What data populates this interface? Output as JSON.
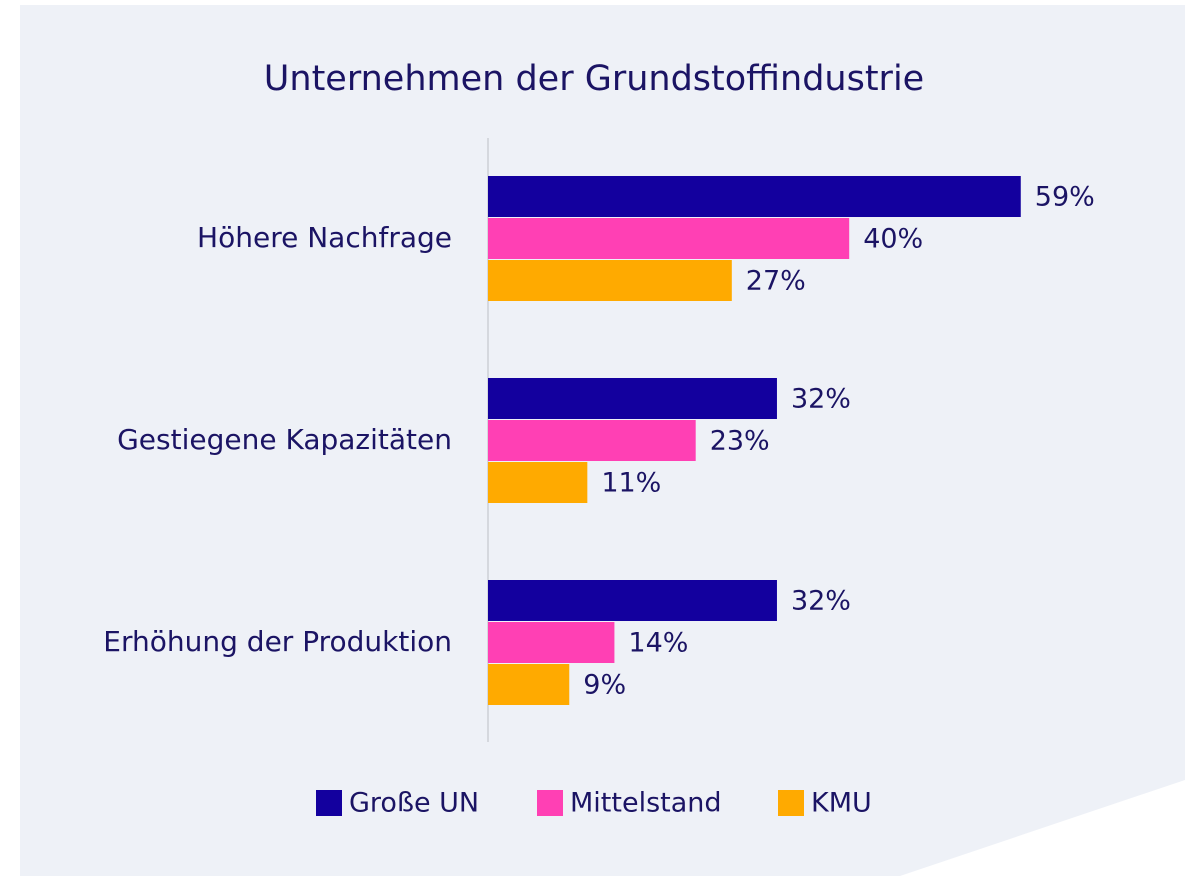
{
  "chart_data": {
    "type": "bar",
    "orientation": "horizontal",
    "title": "Unternehmen der Grundstoffindustrie",
    "categories": [
      "Höhere Nachfrage",
      "Gestiegene Kapazitäten",
      "Erhöhung der Produktion"
    ],
    "series": [
      {
        "name": "Große UN",
        "color": "#13009e",
        "values": [
          59,
          32,
          32
        ],
        "value_labels": [
          "59%",
          "32%",
          "32%"
        ]
      },
      {
        "name": "Mittelstand",
        "color": "#ff40b4",
        "values": [
          40,
          23,
          14
        ],
        "value_labels": [
          "40%",
          "23%",
          "14%"
        ]
      },
      {
        "name": "KMU",
        "color": "#ffaa00",
        "values": [
          27,
          11,
          9
        ],
        "value_labels": [
          "27%",
          "11%",
          "9%"
        ]
      }
    ],
    "legend": "bottom"
  }
}
